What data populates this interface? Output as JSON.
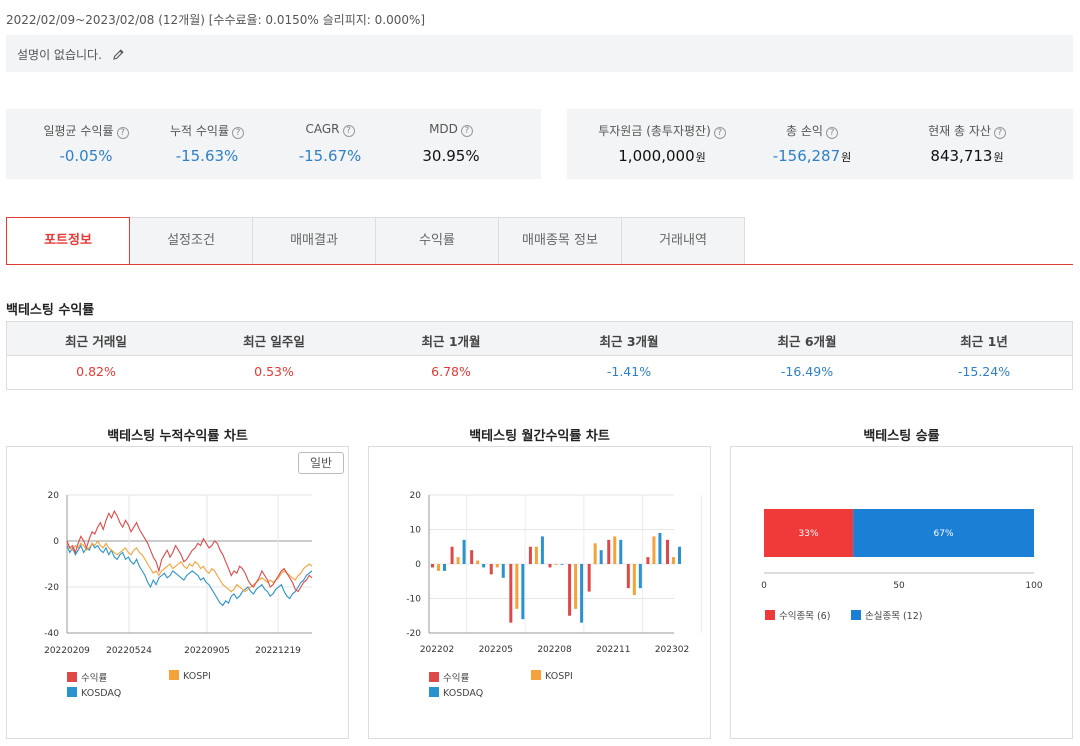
{
  "header": {
    "period": "2022/02/09~2023/02/08 (12개월) [수수료율: 0.0150% 슬리피지: 0.000%]",
    "description": "설명이 없습니다."
  },
  "stats_left": [
    {
      "label": "일평균 수익률",
      "value": "-0.05%",
      "color": "blue"
    },
    {
      "label": "누적 수익률",
      "value": "-15.63%",
      "color": "blue"
    },
    {
      "label": "CAGR",
      "value": "-15.67%",
      "color": "blue"
    },
    {
      "label": "MDD",
      "value": "30.95%",
      "color": "black"
    }
  ],
  "stats_right": [
    {
      "label": "투자원금 (총투자평잔)",
      "value": "1,000,000",
      "unit": "원",
      "color": "black"
    },
    {
      "label": "총 손익",
      "value": "-156,287",
      "unit": "원",
      "color": "blue"
    },
    {
      "label": "현재 총 자산",
      "value": "843,713",
      "unit": "원",
      "color": "black"
    }
  ],
  "tabs": [
    "포트정보",
    "설정조건",
    "매매결과",
    "수익률",
    "매매종목 정보",
    "거래내역"
  ],
  "active_tab": 0,
  "returns_section": {
    "title": "백테스팅 수익률",
    "headers": [
      "최근 거래일",
      "최근 일주일",
      "최근 1개월",
      "최근 3개월",
      "최근 6개월",
      "최근 1년"
    ],
    "values": [
      "0.82%",
      "0.53%",
      "6.78%",
      "-1.41%",
      "-16.49%",
      "-15.24%"
    ]
  },
  "colors": {
    "accent_red": "#e53935",
    "blue": "#2f80c8",
    "series_return": "#e04848",
    "series_kospi": "#f5a23a",
    "series_kosdaq": "#2a93cf",
    "win": "#f03a3a",
    "loss": "#1b7fd6"
  },
  "cumulative_chart": {
    "title": "백테스팅 누적수익률 차트",
    "toggle_label": "일반",
    "chart_data": {
      "type": "line",
      "x_ticks": [
        "20220209",
        "20220524",
        "20220905",
        "20221219"
      ],
      "yticks": [
        20,
        0,
        -20,
        -40
      ],
      "ylim": [
        -40,
        20
      ],
      "series": [
        {
          "name": "수익률",
          "color": "#e04848",
          "values": [
            0,
            -3,
            -2,
            -5,
            -1,
            2,
            0,
            -3,
            1,
            4,
            3,
            6,
            8,
            5,
            9,
            12,
            10,
            13,
            11,
            8,
            6,
            9,
            7,
            4,
            6,
            8,
            5,
            3,
            1,
            -1,
            -4,
            -7,
            -9,
            -13,
            -8,
            -6,
            -4,
            -7,
            -5,
            -2,
            -4,
            -6,
            -9,
            -8,
            -6,
            -4,
            -3,
            -1,
            -2,
            1,
            -1,
            -3,
            -2,
            0,
            -1,
            -4,
            -6,
            -9,
            -12,
            -15,
            -13,
            -14,
            -11,
            -12,
            -14,
            -17,
            -19,
            -20,
            -18,
            -16,
            -13,
            -15,
            -17,
            -20,
            -19,
            -17,
            -15,
            -13,
            -12,
            -14,
            -16,
            -18,
            -21,
            -22,
            -20,
            -18,
            -17,
            -15,
            -16
          ]
        },
        {
          "name": "KOSPI",
          "color": "#f5a23a",
          "values": [
            -1,
            -3,
            -4,
            -2,
            -3,
            -1,
            -2,
            -4,
            -3,
            -1,
            -2,
            0,
            -2,
            -3,
            -1,
            -3,
            -4,
            -5,
            -6,
            -5,
            -4,
            -3,
            -5,
            -6,
            -4,
            -3,
            -5,
            -6,
            -8,
            -10,
            -12,
            -14,
            -13,
            -15,
            -13,
            -12,
            -11,
            -10,
            -12,
            -11,
            -10,
            -9,
            -11,
            -12,
            -10,
            -11,
            -9,
            -10,
            -12,
            -11,
            -13,
            -14,
            -12,
            -13,
            -15,
            -17,
            -19,
            -20,
            -21,
            -22,
            -21,
            -19,
            -20,
            -21,
            -22,
            -21,
            -20,
            -19,
            -18,
            -17,
            -16,
            -17,
            -18,
            -17,
            -18,
            -17,
            -16,
            -14,
            -13,
            -14,
            -15,
            -16,
            -17,
            -15,
            -14,
            -12,
            -11,
            -10,
            -11
          ]
        },
        {
          "name": "KOSDAQ",
          "color": "#2a93cf",
          "values": [
            -2,
            -5,
            -3,
            -6,
            -4,
            -2,
            -5,
            -3,
            -4,
            -1,
            -3,
            -2,
            -4,
            -5,
            -3,
            -6,
            -4,
            -7,
            -8,
            -6,
            -5,
            -8,
            -7,
            -9,
            -10,
            -8,
            -11,
            -13,
            -15,
            -18,
            -20,
            -17,
            -19,
            -16,
            -15,
            -14,
            -16,
            -15,
            -13,
            -14,
            -15,
            -16,
            -17,
            -15,
            -14,
            -13,
            -14,
            -15,
            -17,
            -16,
            -18,
            -19,
            -21,
            -23,
            -25,
            -27,
            -28,
            -26,
            -27,
            -24,
            -23,
            -25,
            -24,
            -22,
            -21,
            -20,
            -22,
            -23,
            -21,
            -20,
            -19,
            -21,
            -22,
            -24,
            -23,
            -21,
            -20,
            -19,
            -22,
            -24,
            -25,
            -23,
            -22,
            -20,
            -18,
            -17,
            -15,
            -14,
            -13
          ]
        }
      ]
    }
  },
  "monthly_chart": {
    "title": "백테스팅 월간수익률 차트",
    "chart_data": {
      "type": "bar",
      "categories": [
        "202202",
        "202203",
        "202204",
        "202205",
        "202206",
        "202207",
        "202208",
        "202209",
        "202210",
        "202211",
        "202212",
        "202301",
        "202302"
      ],
      "x_tick_labels": [
        "202202",
        "202205",
        "202208",
        "202211",
        "202302"
      ],
      "yticks": [
        20,
        10,
        0,
        -10,
        -20
      ],
      "ylim": [
        -20,
        20
      ],
      "series": [
        {
          "name": "수익률",
          "color": "#e04848",
          "values": [
            -1,
            5,
            4,
            -3,
            -17,
            5,
            -1,
            -15,
            -8,
            7,
            -7,
            2,
            7
          ]
        },
        {
          "name": "KOSPI",
          "color": "#f5a23a",
          "values": [
            -2,
            2,
            1,
            -1,
            -13,
            5,
            0,
            -13,
            6,
            8,
            -9,
            8,
            2
          ]
        },
        {
          "name": "KOSDAQ",
          "color": "#2a93cf",
          "values": [
            -2,
            7,
            -1,
            -4,
            -16,
            8,
            0,
            -17,
            4,
            7,
            -7,
            9,
            5
          ]
        }
      ]
    }
  },
  "win_chart": {
    "title": "백테스팅 승률",
    "chart_data": {
      "type": "bar",
      "orientation": "horizontal-stacked",
      "xlim": [
        0,
        100
      ],
      "xticks": [
        0,
        50,
        100
      ],
      "segments": [
        {
          "name": "수익종목 (6)",
          "value": 33,
          "label": "33%",
          "color": "#f03a3a"
        },
        {
          "name": "손실종목 (12)",
          "value": 67,
          "label": "67%",
          "color": "#1b7fd6"
        }
      ]
    }
  }
}
